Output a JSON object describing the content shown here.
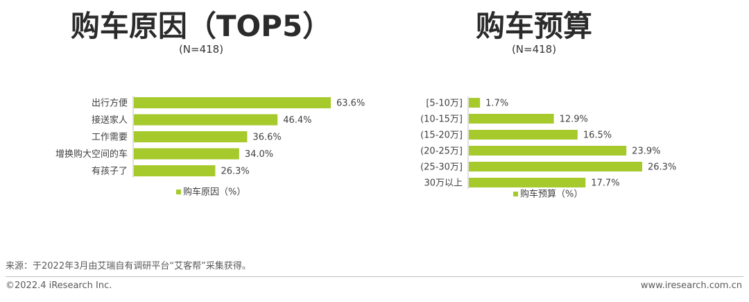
{
  "colors": {
    "bar": "#a6c92c",
    "title": "#2b2b2b",
    "text": "#404040"
  },
  "chart_data": [
    {
      "type": "bar",
      "orientation": "horizontal",
      "title": "购车原因（TOP5）",
      "subtitle": "(N=418)",
      "categories": [
        "出行方便",
        "接送家人",
        "工作需要",
        "增换购大空间的车",
        "有孩子了"
      ],
      "values": [
        63.6,
        46.4,
        36.6,
        34.0,
        26.3
      ],
      "value_labels": [
        "63.6%",
        "46.4%",
        "36.6%",
        "34.0%",
        "26.3%"
      ],
      "legend": "购车原因（%）",
      "legend_position": "bottom",
      "grid": false
    },
    {
      "type": "bar",
      "orientation": "horizontal",
      "title": "购车预算",
      "subtitle": "(N=418)",
      "categories": [
        "[5-10万]",
        "(10-15万]",
        "(15-20万]",
        "(20-25万]",
        "(25-30万]",
        "30万以上"
      ],
      "values": [
        1.7,
        12.9,
        16.5,
        23.9,
        26.3,
        17.7
      ],
      "value_labels": [
        "1.7%",
        "12.9%",
        "16.5%",
        "23.9%",
        "26.3%",
        "17.7%"
      ],
      "legend": "购车预算（%）",
      "legend_position": "bottom",
      "grid": false
    }
  ],
  "footer": {
    "source": "来源：于2022年3月由艾瑞自有调研平台“艾客帮”采集获得。",
    "copyright": "©2022.4 iResearch Inc.",
    "website": "www.iresearch.com.cn"
  }
}
